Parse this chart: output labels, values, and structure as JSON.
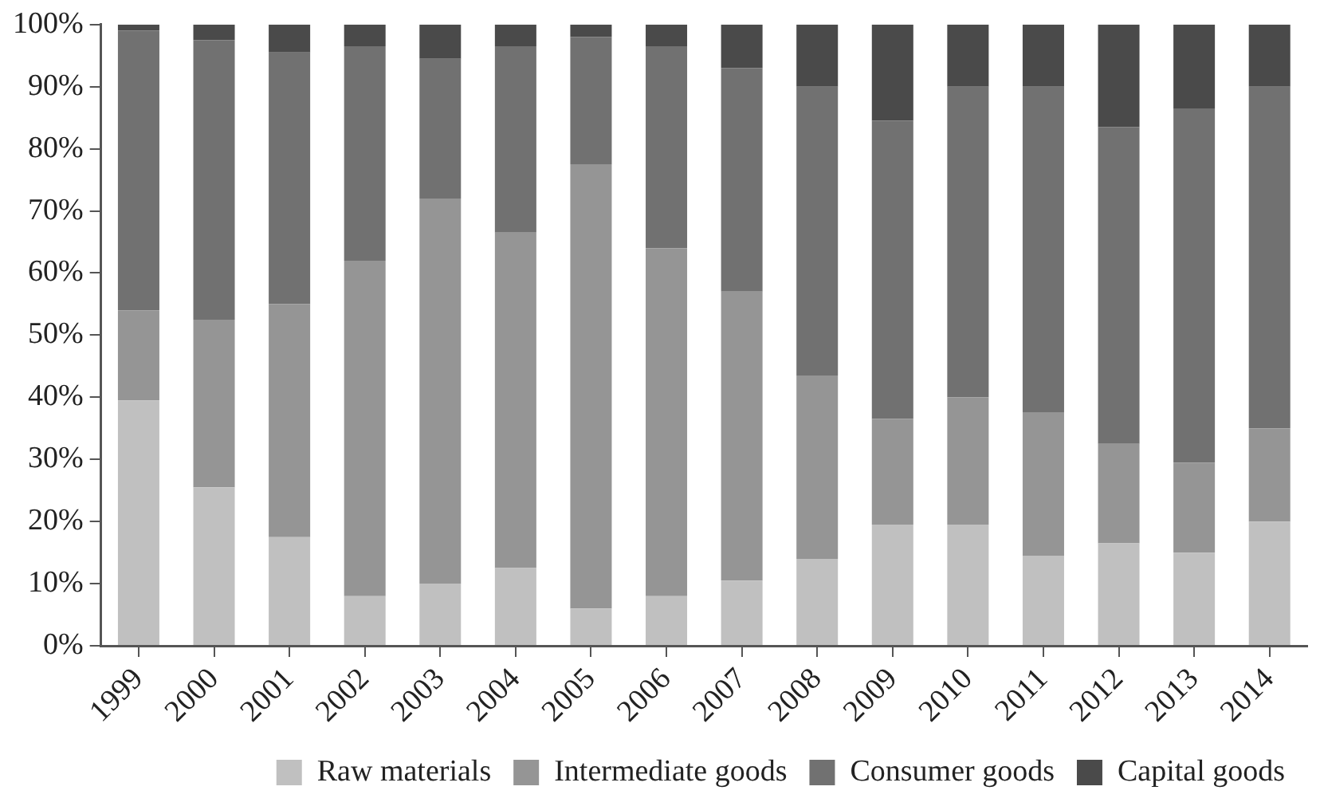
{
  "chart_data": {
    "type": "bar",
    "stacked": true,
    "categories": [
      "1999",
      "2000",
      "2001",
      "2002",
      "2003",
      "2004",
      "2005",
      "2006",
      "2007",
      "2008",
      "2009",
      "2010",
      "2011",
      "2012",
      "2013",
      "2014"
    ],
    "series": [
      {
        "name": "Raw materials",
        "color": "#c0c0c0",
        "values": [
          39.5,
          25.5,
          17.5,
          8,
          10,
          12.5,
          6,
          8,
          10.5,
          14,
          19.5,
          19.5,
          14.5,
          16.5,
          15,
          20
        ]
      },
      {
        "name": "Intermediate goods",
        "color": "#959595",
        "values": [
          14.5,
          27,
          37.5,
          54,
          62,
          54,
          71.5,
          56,
          46.5,
          29.5,
          17,
          20.5,
          23,
          16,
          14.5,
          15
        ]
      },
      {
        "name": "Consumer goods",
        "color": "#717171",
        "values": [
          45,
          45,
          40.5,
          34.5,
          22.5,
          30,
          20.5,
          32.5,
          36,
          46.5,
          48,
          50,
          52.5,
          51,
          57,
          55
        ]
      },
      {
        "name": "Capital goods",
        "color": "#4a4a4a",
        "values": [
          1,
          2.5,
          4.5,
          3.5,
          5.5,
          3.5,
          2,
          3.5,
          7,
          10,
          15.5,
          10,
          10,
          16.5,
          13.5,
          10
        ]
      }
    ],
    "ylim": [
      0,
      100
    ],
    "yticks": [
      {
        "value": 0,
        "label": "0%"
      },
      {
        "value": 10,
        "label": "10%"
      },
      {
        "value": 20,
        "label": "20%"
      },
      {
        "value": 30,
        "label": "30%"
      },
      {
        "value": 40,
        "label": "40%"
      },
      {
        "value": 50,
        "label": "50%"
      },
      {
        "value": 60,
        "label": "60%"
      },
      {
        "value": 70,
        "label": "70%"
      },
      {
        "value": 80,
        "label": "80%"
      },
      {
        "value": 90,
        "label": "90%"
      },
      {
        "value": 100,
        "label": "100%"
      }
    ],
    "grid": false,
    "legend": "bottom"
  }
}
